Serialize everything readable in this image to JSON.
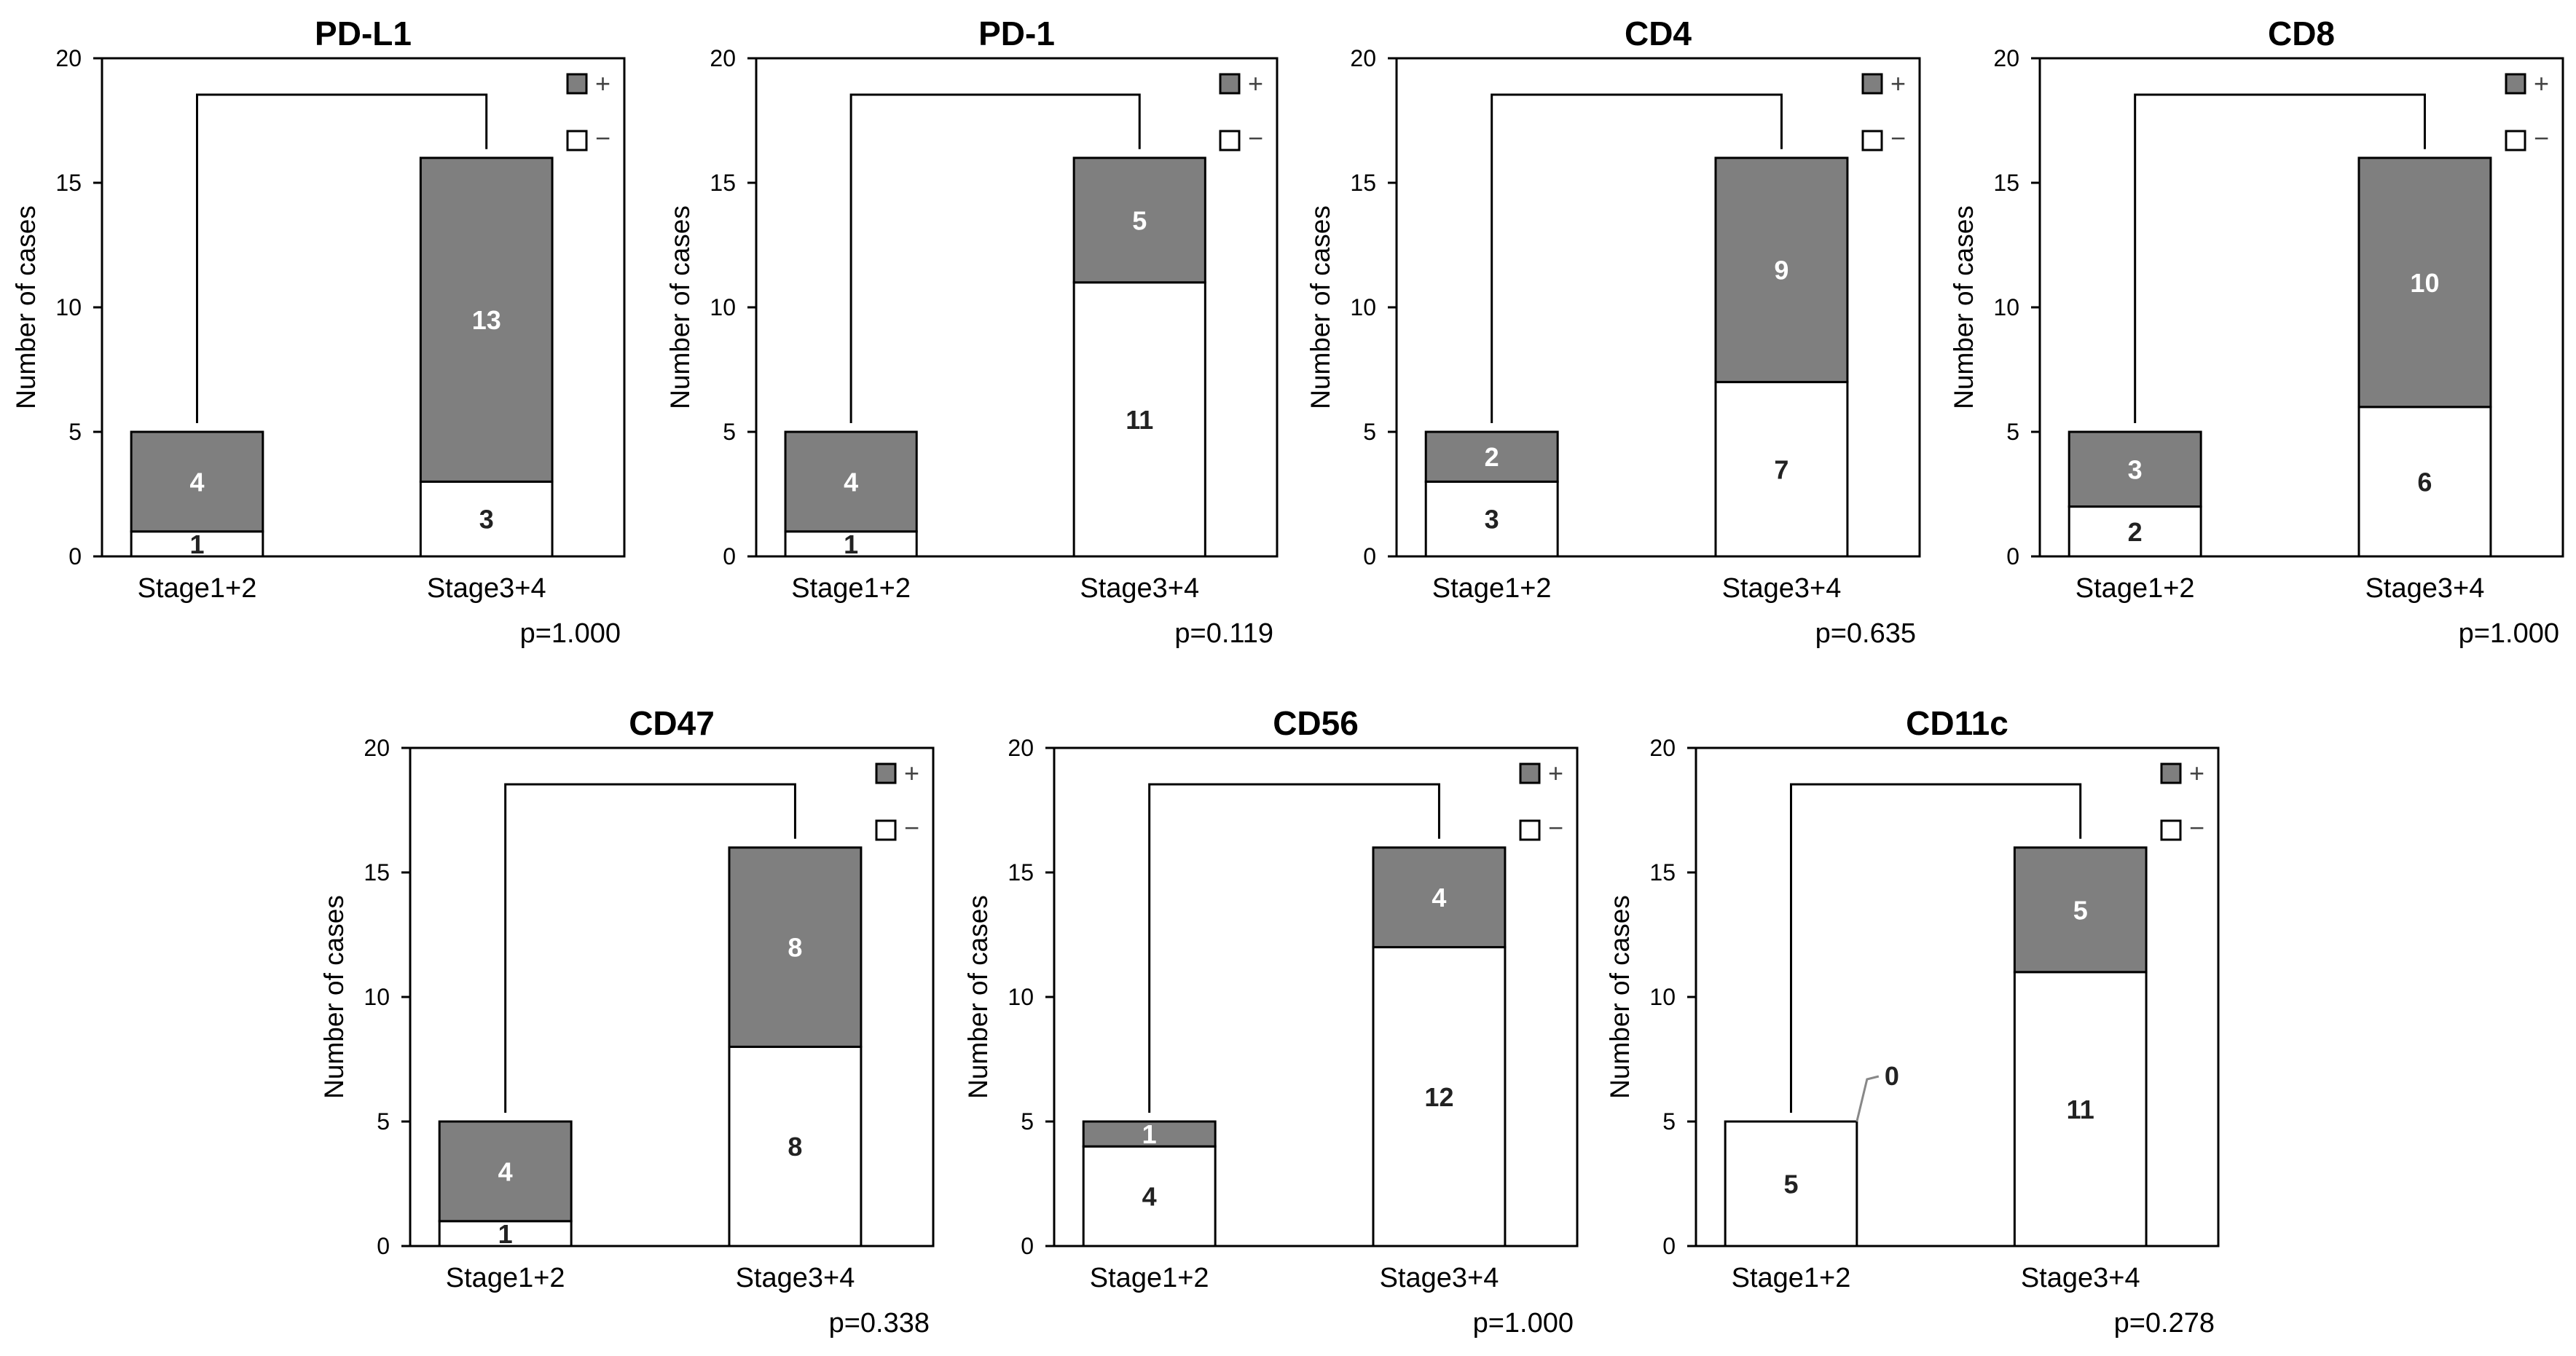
{
  "colors": {
    "positive": "#7f7f7f",
    "negative": "#ffffff",
    "stroke": "#000000",
    "positive_label": "#ffffff",
    "negative_label": "#222222"
  },
  "chart_data": [
    {
      "type": "bar",
      "stacked": true,
      "title": "PD-L1",
      "ylabel": "Number of cases",
      "ylim": [
        0,
        20
      ],
      "yticks": [
        0,
        5,
        10,
        15,
        20
      ],
      "categories": [
        "Stage1+2",
        "Stage3+4"
      ],
      "series": [
        {
          "name": "−",
          "values": [
            1,
            3
          ]
        },
        {
          "name": "+",
          "values": [
            4,
            13
          ]
        }
      ],
      "legend": [
        "+",
        "−"
      ],
      "legend_position": "top-right",
      "p_value": "p=1.000"
    },
    {
      "type": "bar",
      "stacked": true,
      "title": "PD-1",
      "ylabel": "Number of cases",
      "ylim": [
        0,
        20
      ],
      "yticks": [
        0,
        5,
        10,
        15,
        20
      ],
      "categories": [
        "Stage1+2",
        "Stage3+4"
      ],
      "series": [
        {
          "name": "−",
          "values": [
            1,
            11
          ]
        },
        {
          "name": "+",
          "values": [
            4,
            5
          ]
        }
      ],
      "legend": [
        "+",
        "−"
      ],
      "legend_position": "top-right",
      "p_value": "p=0.119"
    },
    {
      "type": "bar",
      "stacked": true,
      "title": "CD4",
      "ylabel": "Number of cases",
      "ylim": [
        0,
        20
      ],
      "yticks": [
        0,
        5,
        10,
        15,
        20
      ],
      "categories": [
        "Stage1+2",
        "Stage3+4"
      ],
      "series": [
        {
          "name": "−",
          "values": [
            3,
            7
          ]
        },
        {
          "name": "+",
          "values": [
            2,
            9
          ]
        }
      ],
      "legend": [
        "+",
        "−"
      ],
      "legend_position": "top-right",
      "p_value": "p=0.635"
    },
    {
      "type": "bar",
      "stacked": true,
      "title": "CD8",
      "ylabel": "Number of cases",
      "ylim": [
        0,
        20
      ],
      "yticks": [
        0,
        5,
        10,
        15,
        20
      ],
      "categories": [
        "Stage1+2",
        "Stage3+4"
      ],
      "series": [
        {
          "name": "−",
          "values": [
            2,
            6
          ]
        },
        {
          "name": "+",
          "values": [
            3,
            10
          ]
        }
      ],
      "legend": [
        "+",
        "−"
      ],
      "legend_position": "top-right",
      "p_value": "p=1.000"
    },
    {
      "type": "bar",
      "stacked": true,
      "title": "CD47",
      "ylabel": "Number of cases",
      "ylim": [
        0,
        20
      ],
      "yticks": [
        0,
        5,
        10,
        15,
        20
      ],
      "categories": [
        "Stage1+2",
        "Stage3+4"
      ],
      "series": [
        {
          "name": "−",
          "values": [
            1,
            8
          ]
        },
        {
          "name": "+",
          "values": [
            4,
            8
          ]
        }
      ],
      "legend": [
        "+",
        "−"
      ],
      "legend_position": "top-right",
      "p_value": "p=0.338"
    },
    {
      "type": "bar",
      "stacked": true,
      "title": "CD56",
      "ylabel": "Number of cases",
      "ylim": [
        0,
        20
      ],
      "yticks": [
        0,
        5,
        10,
        15,
        20
      ],
      "categories": [
        "Stage1+2",
        "Stage3+4"
      ],
      "series": [
        {
          "name": "−",
          "values": [
            4,
            12
          ]
        },
        {
          "name": "+",
          "values": [
            1,
            4
          ]
        }
      ],
      "legend": [
        "+",
        "−"
      ],
      "legend_position": "top-right",
      "p_value": "p=1.000"
    },
    {
      "type": "bar",
      "stacked": true,
      "title": "CD11c",
      "ylabel": "Number of cases",
      "ylim": [
        0,
        20
      ],
      "yticks": [
        0,
        5,
        10,
        15,
        20
      ],
      "categories": [
        "Stage1+2",
        "Stage3+4"
      ],
      "series": [
        {
          "name": "−",
          "values": [
            5,
            11
          ]
        },
        {
          "name": "+",
          "values": [
            0,
            5
          ]
        }
      ],
      "legend": [
        "+",
        "−"
      ],
      "legend_position": "top-right",
      "p_value": "p=0.278"
    }
  ]
}
